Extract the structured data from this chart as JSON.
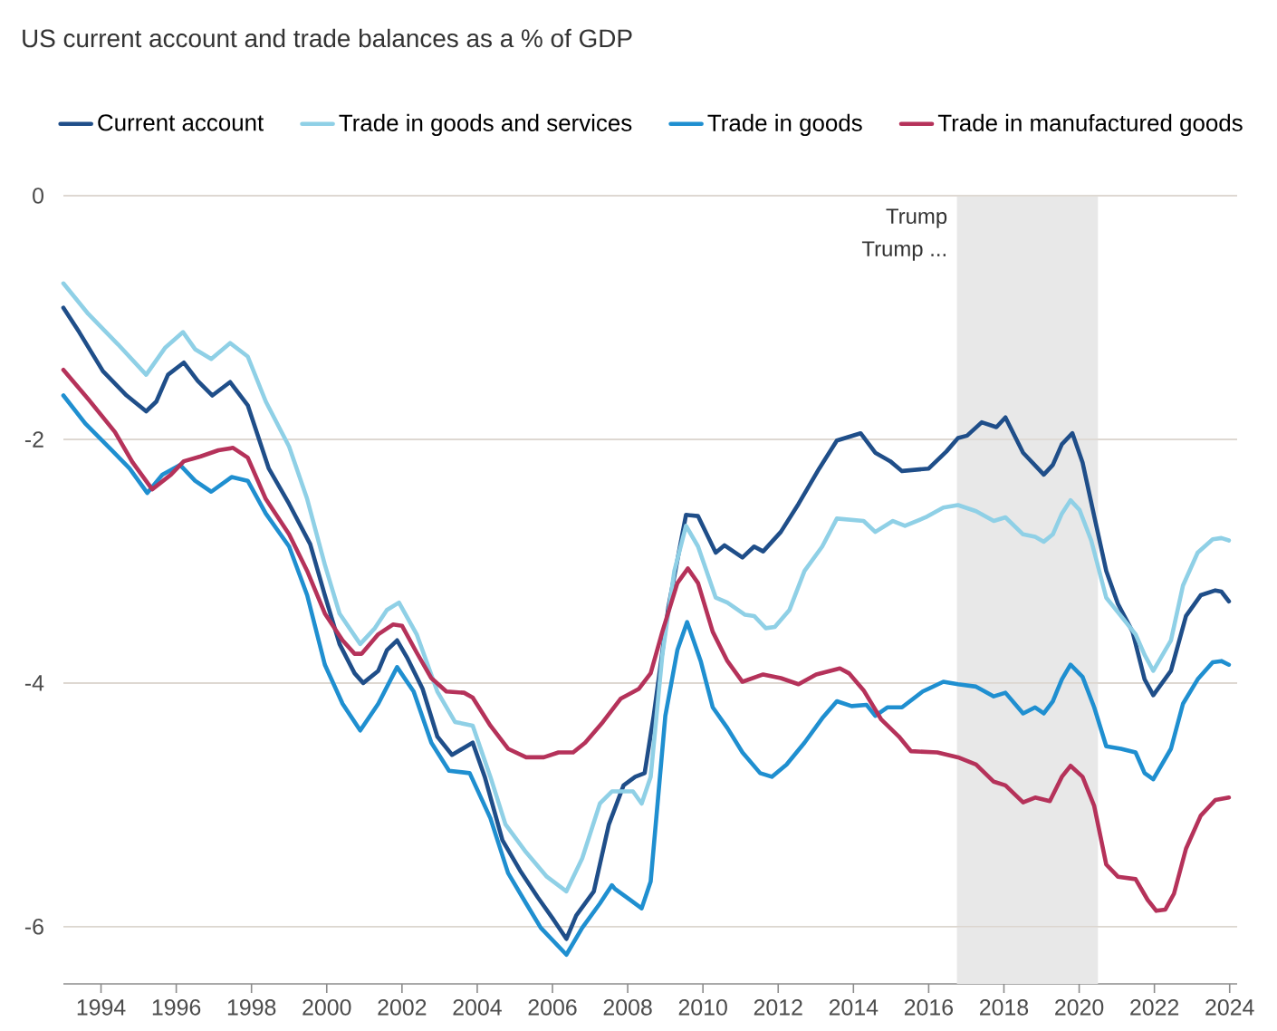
{
  "chart_data": {
    "type": "line",
    "title": "US current account and trade balances as a % of GDP",
    "xlim": [
      1993,
      2024.2
    ],
    "xticks": [
      1994,
      1996,
      1998,
      2000,
      2002,
      2004,
      2006,
      2008,
      2010,
      2012,
      2014,
      2016,
      2018,
      2020,
      2022,
      2024
    ],
    "ylim": [
      -6.47,
      0
    ],
    "yticks": [
      0,
      -2,
      -4,
      -6
    ],
    "grid": "y",
    "legend": "top",
    "marker": "none",
    "line_style": "solid",
    "bands": [
      {
        "axis": "x",
        "from": 2016.75,
        "to": 2020.5,
        "label": "Trump",
        "color": "#e8e8e8"
      }
    ],
    "annotations": [
      "Trump ..."
    ],
    "series": [
      {
        "name": "Current account",
        "color": "#1f4e89",
        "x": [
          1993.0,
          1993.42,
          1994.05,
          1994.68,
          1995.2,
          1995.47,
          1995.78,
          1996.2,
          1996.57,
          1996.96,
          1997.43,
          1997.9,
          1998.46,
          1999.0,
          1999.56,
          1999.95,
          2000.34,
          2000.74,
          2000.97,
          2001.37,
          2001.6,
          2001.87,
          2002.15,
          2002.55,
          2002.94,
          2003.33,
          2003.88,
          2004.2,
          2004.67,
          2005.14,
          2005.61,
          2006.0,
          2006.37,
          2006.63,
          2007.1,
          2007.5,
          2007.89,
          2008.2,
          2008.45,
          2008.69,
          2009.08,
          2009.55,
          2009.87,
          2010.34,
          2010.57,
          2011.05,
          2011.36,
          2011.6,
          2012.07,
          2012.54,
          2013.09,
          2013.56,
          2014.19,
          2014.58,
          2014.98,
          2015.29,
          2016.0,
          2016.47,
          2016.78,
          2017.02,
          2017.41,
          2017.8,
          2018.04,
          2018.51,
          2019.06,
          2019.3,
          2019.54,
          2019.82,
          2020.09,
          2020.4,
          2020.72,
          2021.03,
          2021.42,
          2021.74,
          2021.97,
          2022.44,
          2022.84,
          2023.23,
          2023.62,
          2023.78,
          2023.98
        ],
        "values": [
          -0.92,
          -1.12,
          -1.44,
          -1.64,
          -1.77,
          -1.69,
          -1.47,
          -1.37,
          -1.52,
          -1.64,
          -1.53,
          -1.72,
          -2.24,
          -2.53,
          -2.86,
          -3.28,
          -3.68,
          -3.92,
          -4.0,
          -3.9,
          -3.73,
          -3.65,
          -3.8,
          -4.05,
          -4.44,
          -4.59,
          -4.49,
          -4.77,
          -5.29,
          -5.54,
          -5.76,
          -5.93,
          -6.1,
          -5.91,
          -5.71,
          -5.16,
          -4.84,
          -4.77,
          -4.74,
          -4.27,
          -3.38,
          -2.62,
          -2.63,
          -2.93,
          -2.87,
          -2.97,
          -2.88,
          -2.92,
          -2.76,
          -2.53,
          -2.24,
          -2.01,
          -1.95,
          -2.11,
          -2.18,
          -2.26,
          -2.24,
          -2.1,
          -1.99,
          -1.97,
          -1.86,
          -1.9,
          -1.82,
          -2.11,
          -2.29,
          -2.21,
          -2.04,
          -1.95,
          -2.19,
          -2.63,
          -3.08,
          -3.35,
          -3.58,
          -3.97,
          -4.1,
          -3.9,
          -3.45,
          -3.28,
          -3.24,
          -3.25,
          -3.33
        ]
      },
      {
        "name": "Trade in goods and services",
        "color": "#8fd0e6",
        "x": [
          1993.0,
          1993.66,
          1994.45,
          1995.2,
          1995.7,
          1996.18,
          1996.5,
          1996.93,
          1997.43,
          1997.9,
          1998.38,
          1999.0,
          1999.48,
          1999.95,
          2000.34,
          2000.89,
          2001.28,
          2001.6,
          2001.92,
          2002.39,
          2002.94,
          2003.41,
          2003.88,
          2004.35,
          2004.75,
          2005.3,
          2005.85,
          2006.37,
          2006.79,
          2007.26,
          2007.58,
          2007.82,
          2008.14,
          2008.37,
          2008.61,
          2008.92,
          2009.24,
          2009.55,
          2009.87,
          2010.34,
          2010.65,
          2011.12,
          2011.36,
          2011.67,
          2011.91,
          2012.3,
          2012.7,
          2013.17,
          2013.56,
          2014.27,
          2014.58,
          2015.05,
          2015.37,
          2015.92,
          2016.39,
          2016.78,
          2017.26,
          2017.73,
          2018.04,
          2018.51,
          2018.83,
          2019.06,
          2019.3,
          2019.54,
          2019.77,
          2020.01,
          2020.32,
          2020.72,
          2021.11,
          2021.5,
          2021.74,
          2021.97,
          2022.44,
          2022.76,
          2023.15,
          2023.55,
          2023.78,
          2023.98
        ],
        "values": [
          -0.72,
          -0.97,
          -1.22,
          -1.47,
          -1.25,
          -1.12,
          -1.26,
          -1.34,
          -1.21,
          -1.32,
          -1.69,
          -2.06,
          -2.49,
          -3.03,
          -3.43,
          -3.68,
          -3.55,
          -3.4,
          -3.34,
          -3.6,
          -4.07,
          -4.32,
          -4.35,
          -4.77,
          -5.16,
          -5.39,
          -5.59,
          -5.71,
          -5.44,
          -4.99,
          -4.89,
          -4.89,
          -4.89,
          -4.99,
          -4.77,
          -3.77,
          -3.08,
          -2.71,
          -2.88,
          -3.3,
          -3.34,
          -3.44,
          -3.45,
          -3.55,
          -3.54,
          -3.4,
          -3.08,
          -2.88,
          -2.65,
          -2.67,
          -2.76,
          -2.67,
          -2.71,
          -2.64,
          -2.56,
          -2.54,
          -2.59,
          -2.67,
          -2.64,
          -2.78,
          -2.8,
          -2.84,
          -2.78,
          -2.61,
          -2.5,
          -2.58,
          -2.83,
          -3.3,
          -3.45,
          -3.6,
          -3.77,
          -3.9,
          -3.65,
          -3.2,
          -2.93,
          -2.82,
          -2.81,
          -2.83
        ]
      },
      {
        "name": "Trade in goods",
        "color": "#1f8fd0",
        "x": [
          1993.0,
          1993.58,
          1994.29,
          1994.76,
          1995.23,
          1995.63,
          1996.1,
          1996.5,
          1996.93,
          1997.47,
          1997.9,
          1998.38,
          1999.0,
          1999.48,
          1999.95,
          2000.42,
          2000.89,
          2001.37,
          2001.87,
          2002.31,
          2002.78,
          2003.25,
          2003.8,
          2004.35,
          2004.82,
          2005.3,
          2005.69,
          2006.37,
          2006.79,
          2007.26,
          2007.58,
          2007.66,
          2008.06,
          2008.37,
          2008.61,
          2009.0,
          2009.32,
          2009.58,
          2009.94,
          2010.26,
          2010.65,
          2011.05,
          2011.52,
          2011.83,
          2012.22,
          2012.7,
          2013.17,
          2013.56,
          2013.95,
          2014.35,
          2014.58,
          2014.9,
          2015.29,
          2015.84,
          2016.39,
          2016.78,
          2017.26,
          2017.73,
          2018.04,
          2018.51,
          2018.83,
          2019.06,
          2019.3,
          2019.54,
          2019.77,
          2020.09,
          2020.4,
          2020.72,
          2021.11,
          2021.5,
          2021.74,
          2021.97,
          2022.44,
          2022.76,
          2023.15,
          2023.55,
          2023.78,
          2023.98
        ],
        "values": [
          -1.64,
          -1.87,
          -2.09,
          -2.24,
          -2.44,
          -2.29,
          -2.21,
          -2.34,
          -2.43,
          -2.31,
          -2.34,
          -2.61,
          -2.88,
          -3.28,
          -3.85,
          -4.17,
          -4.39,
          -4.17,
          -3.87,
          -4.07,
          -4.49,
          -4.72,
          -4.74,
          -5.11,
          -5.56,
          -5.81,
          -6.01,
          -6.23,
          -6.01,
          -5.81,
          -5.66,
          -5.69,
          -5.78,
          -5.85,
          -5.63,
          -4.27,
          -3.73,
          -3.5,
          -3.82,
          -4.2,
          -4.37,
          -4.57,
          -4.74,
          -4.77,
          -4.67,
          -4.49,
          -4.29,
          -4.15,
          -4.19,
          -4.18,
          -4.27,
          -4.2,
          -4.2,
          -4.07,
          -3.99,
          -4.01,
          -4.03,
          -4.11,
          -4.08,
          -4.25,
          -4.2,
          -4.25,
          -4.15,
          -3.97,
          -3.85,
          -3.95,
          -4.2,
          -4.52,
          -4.54,
          -4.57,
          -4.74,
          -4.79,
          -4.54,
          -4.17,
          -3.97,
          -3.83,
          -3.82,
          -3.85
        ]
      },
      {
        "name": "Trade in manufactured goods",
        "color": "#b5325a",
        "x": [
          1993.0,
          1993.66,
          1994.37,
          1994.84,
          1995.36,
          1995.86,
          1996.2,
          1996.65,
          1997.12,
          1997.51,
          1997.9,
          1998.38,
          1999.0,
          1999.48,
          1999.95,
          2000.42,
          2000.74,
          2000.93,
          2001.37,
          2001.76,
          2002.0,
          2002.39,
          2002.78,
          2003.18,
          2003.65,
          2003.88,
          2004.35,
          2004.82,
          2005.3,
          2005.77,
          2006.16,
          2006.55,
          2006.87,
          2007.34,
          2007.81,
          2008.29,
          2008.61,
          2008.92,
          2009.32,
          2009.6,
          2009.87,
          2010.26,
          2010.65,
          2011.05,
          2011.6,
          2012.07,
          2012.54,
          2013.01,
          2013.64,
          2013.88,
          2014.27,
          2014.74,
          2015.21,
          2015.53,
          2016.23,
          2016.78,
          2017.26,
          2017.73,
          2018.04,
          2018.51,
          2018.83,
          2019.22,
          2019.54,
          2019.77,
          2020.09,
          2020.4,
          2020.72,
          2021.03,
          2021.5,
          2021.82,
          2022.05,
          2022.29,
          2022.52,
          2022.84,
          2023.23,
          2023.62,
          2023.98
        ],
        "values": [
          -1.43,
          -1.67,
          -1.94,
          -2.19,
          -2.41,
          -2.29,
          -2.18,
          -2.14,
          -2.09,
          -2.07,
          -2.15,
          -2.49,
          -2.78,
          -3.08,
          -3.43,
          -3.65,
          -3.76,
          -3.76,
          -3.6,
          -3.52,
          -3.53,
          -3.75,
          -3.96,
          -4.07,
          -4.08,
          -4.12,
          -4.35,
          -4.54,
          -4.61,
          -4.61,
          -4.57,
          -4.57,
          -4.49,
          -4.32,
          -4.13,
          -4.05,
          -3.92,
          -3.58,
          -3.18,
          -3.06,
          -3.18,
          -3.58,
          -3.82,
          -3.99,
          -3.93,
          -3.96,
          -4.01,
          -3.93,
          -3.88,
          -3.92,
          -4.06,
          -4.3,
          -4.44,
          -4.56,
          -4.57,
          -4.61,
          -4.67,
          -4.81,
          -4.84,
          -4.98,
          -4.94,
          -4.97,
          -4.77,
          -4.68,
          -4.77,
          -5.01,
          -5.49,
          -5.59,
          -5.61,
          -5.78,
          -5.87,
          -5.86,
          -5.73,
          -5.36,
          -5.09,
          -4.96,
          -4.94
        ]
      }
    ]
  }
}
